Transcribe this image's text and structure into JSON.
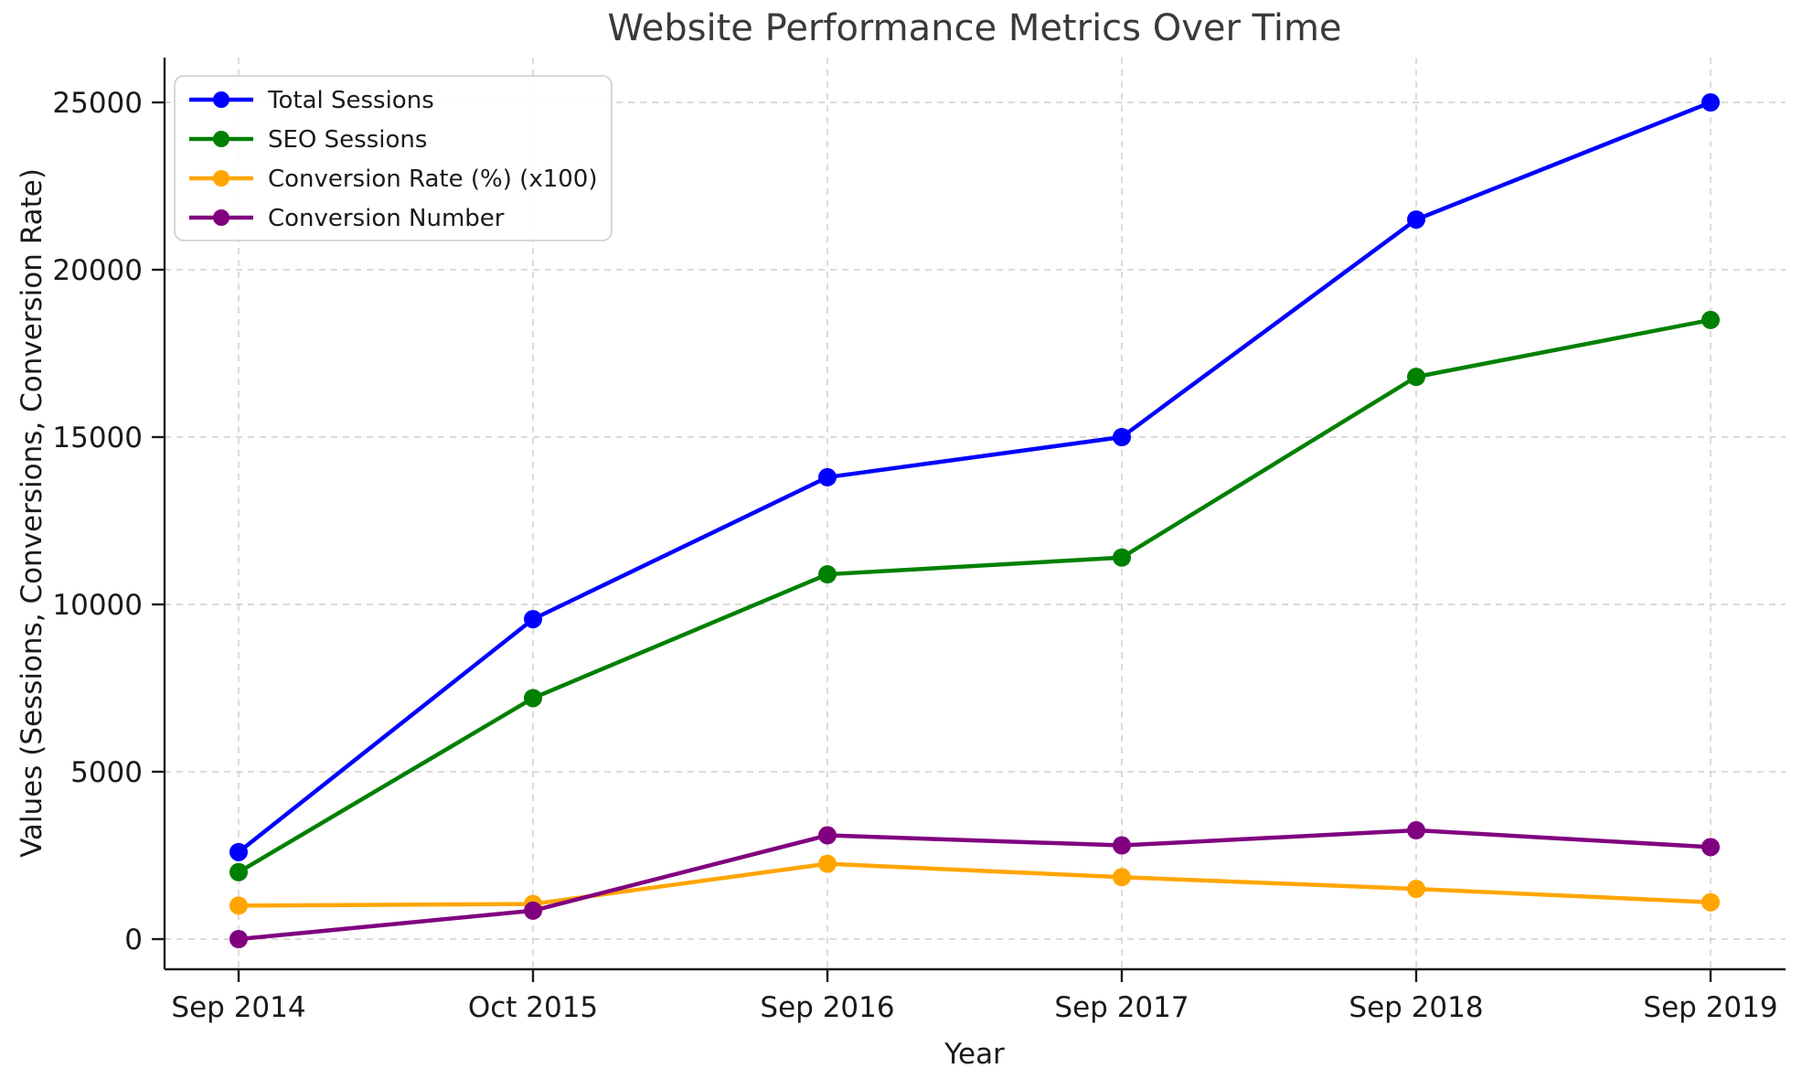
{
  "chart_data": {
    "type": "line",
    "title": "Website Performance Metrics Over Time",
    "xlabel": "Year",
    "ylabel": "Values (Sessions, Conversions, Conversion Rate)",
    "categories": [
      "Sep 2014",
      "Oct 2015",
      "Sep 2016",
      "Sep 2017",
      "Sep 2018",
      "Sep 2019"
    ],
    "series": [
      {
        "name": "Total Sessions",
        "color": "#0000ff",
        "marker": "circle",
        "values": [
          2600,
          9560,
          13800,
          15000,
          21500,
          25000
        ]
      },
      {
        "name": "SEO Sessions",
        "color": "#008000",
        "marker": "circle",
        "values": [
          2000,
          7200,
          10900,
          11400,
          16800,
          18500
        ]
      },
      {
        "name": "Conversion Rate (%) (x100)",
        "color": "#ffa500",
        "marker": "circle",
        "values": [
          1000,
          1050,
          2250,
          1850,
          1500,
          1100
        ]
      },
      {
        "name": "Conversion Number",
        "color": "#800080",
        "marker": "circle",
        "values": [
          0,
          850,
          3100,
          2800,
          3250,
          2750
        ]
      }
    ],
    "yticks": [
      0,
      5000,
      10000,
      15000,
      20000,
      25000
    ],
    "ylim": [
      -900,
      26400
    ],
    "grid": true,
    "grid_style": "dashed",
    "legend_position": "upper left",
    "background_color": "#ffffff",
    "title_color": "#3a3a3a"
  }
}
